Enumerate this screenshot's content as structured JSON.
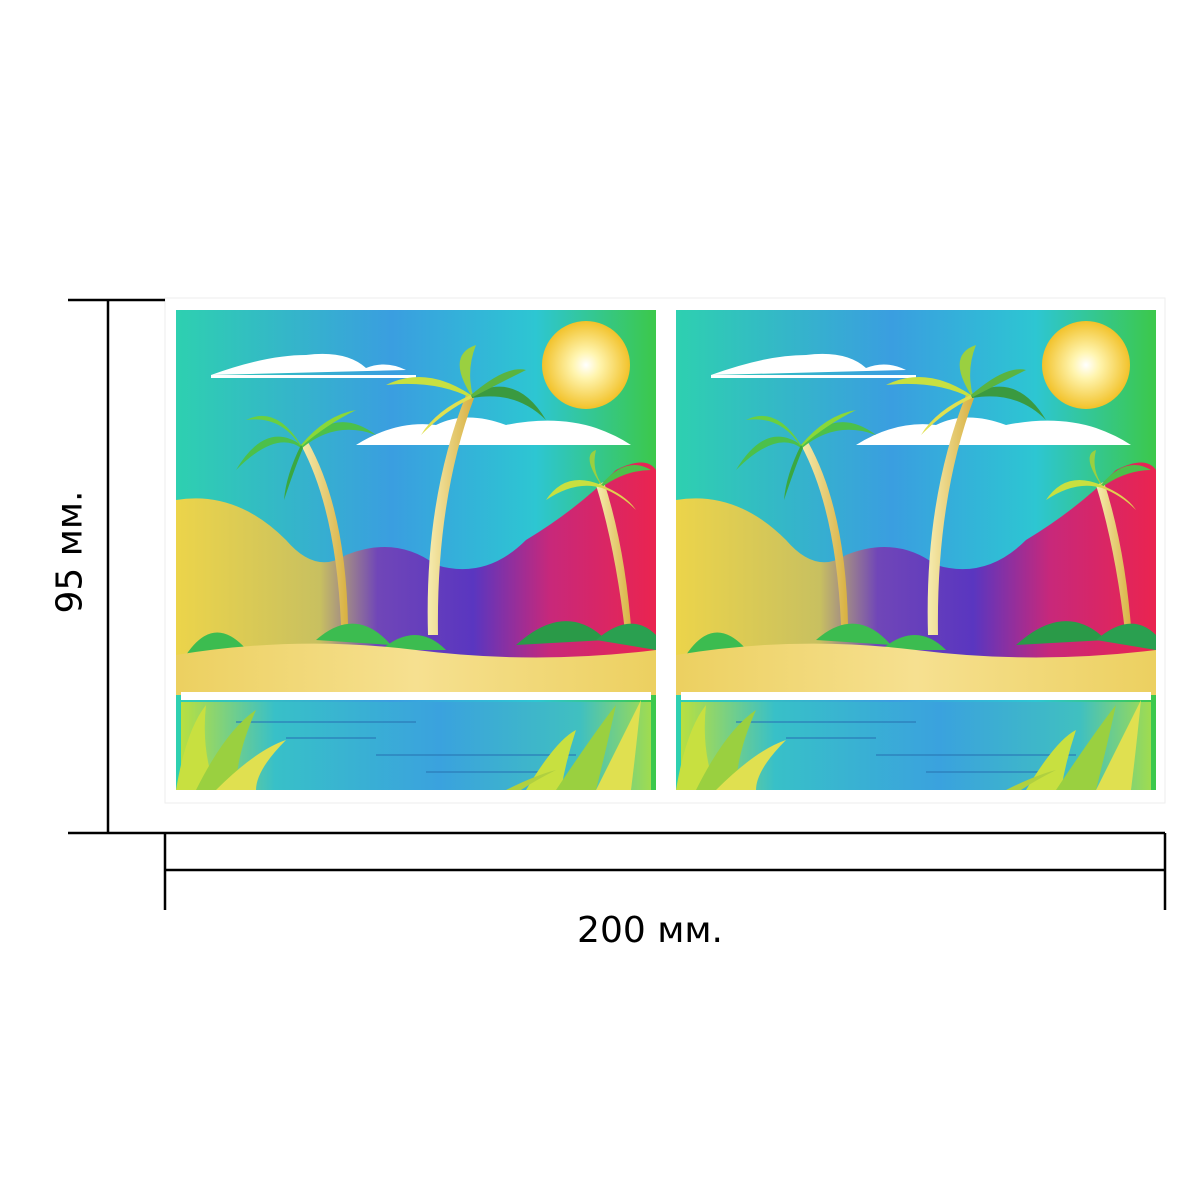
{
  "dimensions": {
    "height_label": "95 мм.",
    "width_label": "200 мм."
  },
  "artwork": {
    "panel_count": 2,
    "scene": "tropical-beach-palms",
    "colors": {
      "sky_teal": "#2bc7c7",
      "sky_blue": "#3a8fe0",
      "sun": "#f5d33a",
      "hill_yellow": "#e8d04a",
      "hill_purple": "#6a3fb5",
      "hill_red": "#e8234f",
      "sand": "#f0d870",
      "water": "#38b8d8",
      "leaf_green": "#4cc04a",
      "frond_yellow": "#c8e040",
      "border": "#ffffff",
      "dimension_line": "#000000"
    }
  }
}
